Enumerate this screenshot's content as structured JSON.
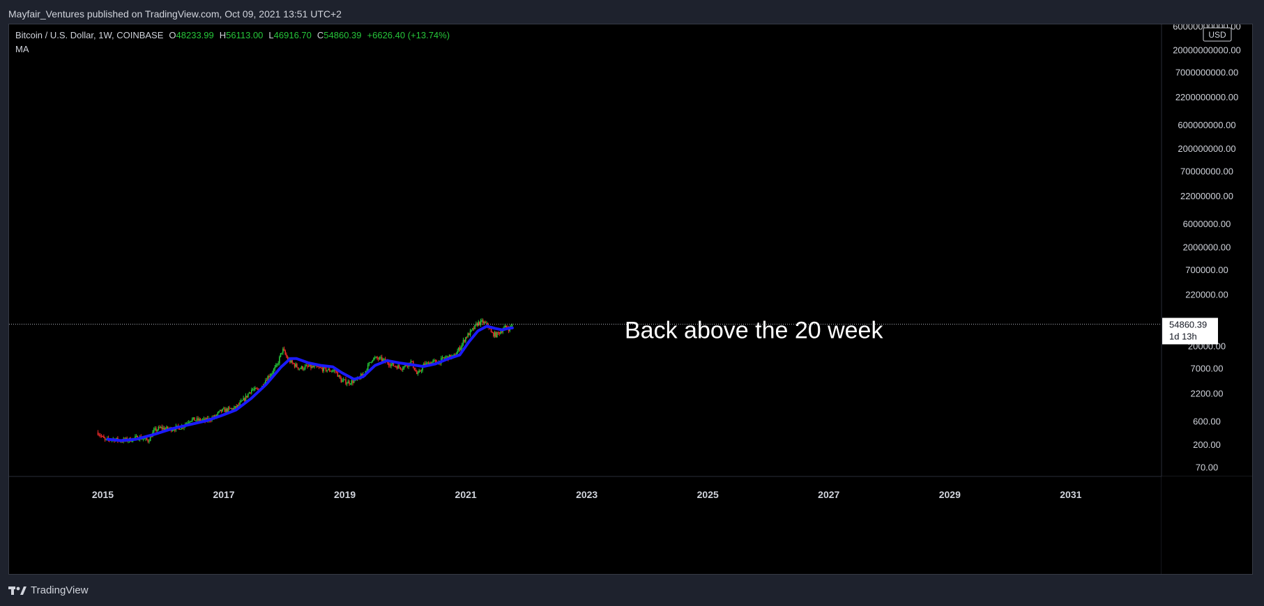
{
  "page": {
    "header_text": "Mayfair_Ventures published on TradingView.com, Oct 09, 2021 13:51 UTC+2",
    "footer_brand": "TradingView",
    "footer_logo_icon": "tradingview-logo-icon"
  },
  "legend": {
    "symbol": "Bitcoin / U.S. Dollar, 1W, COINBASE",
    "o_label": "O",
    "o_value": "48233.99",
    "h_label": "H",
    "h_value": "56113.00",
    "l_label": "L",
    "l_value": "46916.70",
    "c_label": "C",
    "c_value": "54860.39",
    "change": "+6626.40 (+13.74%)",
    "indicator": "MA"
  },
  "price_badge": {
    "price": "54860.39",
    "countdown": "1d 13h"
  },
  "colors": {
    "background": "#000000",
    "frame": "#1e222d",
    "text": "#d1d4dc",
    "up": "#26c63a",
    "down": "#ef2b2b",
    "ma_line": "#1b1bff",
    "annotation": "#ffffff",
    "price_line": "#b2b5be"
  },
  "chart_data": {
    "type": "candlestick",
    "title": "Bitcoin / U.S. Dollar, 1W, COINBASE",
    "y_scale": "log",
    "y_unit": "USD",
    "y_ticks": [
      "60000000000.00",
      "20000000000.00",
      "7000000000.00",
      "2200000000.00",
      "600000000.00",
      "200000000.00",
      "70000000.00",
      "22000000.00",
      "6000000.00",
      "2000000.00",
      "700000.00",
      "220000.00",
      "20000.00",
      "7000.00",
      "2200.00",
      "600.00",
      "200.00",
      "70.00"
    ],
    "y_tick_values": [
      60000000000,
      20000000000,
      7000000000,
      2200000000,
      600000000,
      200000000,
      70000000,
      22000000,
      6000000,
      2000000,
      700000,
      220000,
      20000,
      7000,
      2200,
      600,
      200,
      70
    ],
    "x_ticks": [
      "2015",
      "2017",
      "2019",
      "2021",
      "2023",
      "2025",
      "2027",
      "2029",
      "2031"
    ],
    "x_range": [
      2013.45,
      2032.5
    ],
    "y_range": [
      45,
      65000000000
    ],
    "last_price": 54860.39,
    "annotation": "Back above the 20 week",
    "price_path": [
      [
        2014.92,
        350
      ],
      [
        2015.04,
        240
      ],
      [
        2015.15,
        260
      ],
      [
        2015.3,
        240
      ],
      [
        2015.45,
        250
      ],
      [
        2015.6,
        280
      ],
      [
        2015.75,
        240
      ],
      [
        2015.85,
        380
      ],
      [
        2015.95,
        430
      ],
      [
        2016.1,
        410
      ],
      [
        2016.3,
        450
      ],
      [
        2016.45,
        650
      ],
      [
        2016.55,
        620
      ],
      [
        2016.7,
        610
      ],
      [
        2016.85,
        720
      ],
      [
        2016.95,
        950
      ],
      [
        2017.05,
        1000
      ],
      [
        2017.2,
        1100
      ],
      [
        2017.35,
        1700
      ],
      [
        2017.45,
        2600
      ],
      [
        2017.55,
        2500
      ],
      [
        2017.62,
        2800
      ],
      [
        2017.7,
        4300
      ],
      [
        2017.8,
        5800
      ],
      [
        2017.88,
        8000
      ],
      [
        2017.97,
        17000
      ],
      [
        2018.05,
        11000
      ],
      [
        2018.12,
        9000
      ],
      [
        2018.25,
        7000
      ],
      [
        2018.4,
        7500
      ],
      [
        2018.55,
        7200
      ],
      [
        2018.7,
        6500
      ],
      [
        2018.85,
        6200
      ],
      [
        2018.93,
        4000
      ],
      [
        2019.05,
        3600
      ],
      [
        2019.2,
        4000
      ],
      [
        2019.32,
        5500
      ],
      [
        2019.45,
        11000
      ],
      [
        2019.55,
        11000
      ],
      [
        2019.65,
        10000
      ],
      [
        2019.8,
        8000
      ],
      [
        2019.95,
        7200
      ],
      [
        2020.1,
        9500
      ],
      [
        2020.2,
        5000
      ],
      [
        2020.3,
        8000
      ],
      [
        2020.45,
        9500
      ],
      [
        2020.55,
        9200
      ],
      [
        2020.65,
        11500
      ],
      [
        2020.8,
        12000
      ],
      [
        2020.9,
        18000
      ],
      [
        2021.0,
        30000
      ],
      [
        2021.1,
        40000
      ],
      [
        2021.2,
        58000
      ],
      [
        2021.28,
        60000
      ],
      [
        2021.38,
        50000
      ],
      [
        2021.42,
        36000
      ],
      [
        2021.5,
        33000
      ],
      [
        2021.58,
        40000
      ],
      [
        2021.66,
        48000
      ],
      [
        2021.72,
        44000
      ],
      [
        2021.77,
        54860
      ]
    ],
    "ma_path": [
      [
        2015.08,
        255
      ],
      [
        2015.3,
        240
      ],
      [
        2015.55,
        255
      ],
      [
        2015.85,
        320
      ],
      [
        2016.15,
        420
      ],
      [
        2016.45,
        510
      ],
      [
        2016.7,
        600
      ],
      [
        2016.95,
        760
      ],
      [
        2017.2,
        1000
      ],
      [
        2017.45,
        1700
      ],
      [
        2017.7,
        3300
      ],
      [
        2017.95,
        7500
      ],
      [
        2018.1,
        11000
      ],
      [
        2018.2,
        11000
      ],
      [
        2018.4,
        9000
      ],
      [
        2018.6,
        8000
      ],
      [
        2018.8,
        7500
      ],
      [
        2018.95,
        5700
      ],
      [
        2019.15,
        4200
      ],
      [
        2019.3,
        4700
      ],
      [
        2019.5,
        8000
      ],
      [
        2019.7,
        10000
      ],
      [
        2019.9,
        9000
      ],
      [
        2020.1,
        8300
      ],
      [
        2020.3,
        7600
      ],
      [
        2020.5,
        8600
      ],
      [
        2020.7,
        10800
      ],
      [
        2020.9,
        13000
      ],
      [
        2021.05,
        24000
      ],
      [
        2021.2,
        40000
      ],
      [
        2021.35,
        50000
      ],
      [
        2021.48,
        45000
      ],
      [
        2021.6,
        42000
      ],
      [
        2021.7,
        45000
      ],
      [
        2021.77,
        46000
      ]
    ]
  }
}
